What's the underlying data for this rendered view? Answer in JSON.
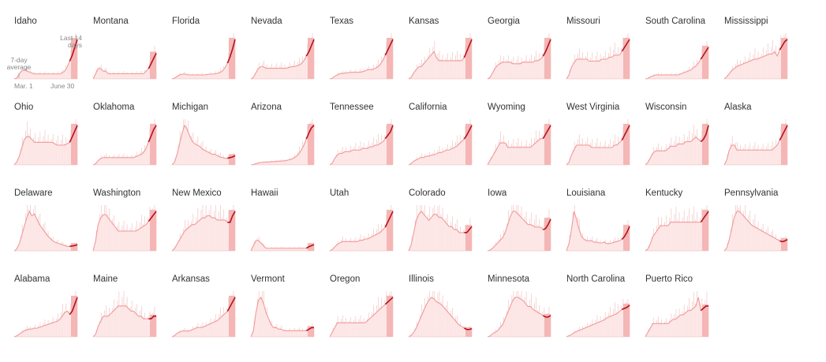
{
  "colors": {
    "daily_bars": "#f4cccc",
    "area_fill": "#fde5e5",
    "average_line": "#f19a9a",
    "recent_line": "#b4121c",
    "highlight_band": "#f5b6b6",
    "annotation_text": "#888888"
  },
  "annotations": {
    "seven_day_average": "7-day average",
    "recent_window": "Last 14 days",
    "start_date": "Mar. 1",
    "end_date": "June 30"
  },
  "chart_data": {
    "type": "area",
    "x_range": [
      "Mar. 1",
      "June 30"
    ],
    "y_scale": "per-chart relative (small multiples, no printed axis values)",
    "grid": false,
    "series": [
      {
        "name": "Idaho",
        "values": [
          0,
          0.5,
          2.5,
          4,
          4.5,
          4,
          3.5,
          3,
          2.5,
          2.5,
          2.5,
          2.5,
          2.5,
          2.5,
          2.5,
          2.5,
          2.5,
          2.5,
          2.5,
          3,
          4,
          6,
          9,
          12,
          16,
          20
        ]
      },
      {
        "name": "Montana",
        "values": [
          0,
          1,
          2,
          2,
          1.5,
          1.5,
          1,
          1,
          1,
          1,
          1,
          1,
          1,
          1,
          1,
          1,
          1,
          1,
          1,
          1,
          1,
          1.5,
          2,
          3,
          4,
          5
        ]
      },
      {
        "name": "Florida",
        "values": [
          0,
          1,
          3,
          5,
          6,
          6,
          5.5,
          5,
          5,
          5,
          5,
          5,
          5,
          5,
          5.5,
          6,
          6,
          6.5,
          7,
          8,
          10,
          14,
          20,
          28,
          38,
          50
        ]
      },
      {
        "name": "Nevada",
        "values": [
          0,
          1,
          4,
          7,
          8,
          8,
          7,
          7,
          7,
          7,
          7,
          7,
          7,
          7,
          7,
          7.5,
          8,
          8,
          8.5,
          9,
          10,
          12,
          15,
          18,
          22,
          26
        ]
      },
      {
        "name": "Texas",
        "values": [
          0,
          0.5,
          2,
          3,
          4,
          4,
          4.5,
          4.5,
          5,
          5,
          5,
          5,
          5,
          5.5,
          6,
          7,
          7,
          7,
          8,
          9,
          11,
          14,
          18,
          22,
          26,
          30
        ]
      },
      {
        "name": "Kansas",
        "values": [
          0,
          0.5,
          2,
          3,
          4,
          4,
          5,
          6,
          7,
          8,
          9,
          7,
          6,
          6,
          6,
          6,
          6,
          6,
          6,
          6,
          6,
          6,
          7,
          9,
          11,
          13
        ]
      },
      {
        "name": "Georgia",
        "values": [
          0,
          1,
          4,
          7,
          9,
          10,
          11,
          11,
          11,
          11,
          10,
          10,
          10,
          10,
          11,
          11,
          11,
          11,
          11,
          12,
          12,
          13,
          15,
          18,
          22,
          26
        ]
      },
      {
        "name": "Missouri",
        "values": [
          0,
          1,
          3,
          4,
          5,
          5,
          5,
          5,
          5,
          4.5,
          4.5,
          4.5,
          4.5,
          4.5,
          5,
          5,
          5,
          5.5,
          5.5,
          6,
          6,
          6,
          7,
          8,
          9,
          10
        ]
      },
      {
        "name": "South Carolina",
        "values": [
          0,
          0.5,
          2,
          3,
          4,
          4,
          4,
          4,
          4,
          4,
          4,
          4,
          4,
          4,
          5,
          6,
          7,
          8,
          9,
          11,
          13,
          16,
          20,
          24,
          28,
          32
        ]
      },
      {
        "name": "Mississippi",
        "values": [
          0,
          2,
          5,
          8,
          10,
          12,
          13,
          14,
          15,
          16,
          17,
          18,
          19,
          19,
          20,
          21,
          22,
          23,
          24,
          24,
          26,
          22,
          28,
          32,
          36,
          38
        ]
      },
      {
        "name": "Ohio",
        "values": [
          0,
          1,
          3,
          6,
          9,
          10,
          10,
          9,
          8,
          8,
          8,
          8,
          8,
          8,
          8,
          8,
          7.5,
          7,
          7,
          7,
          7,
          7.5,
          8,
          10,
          12,
          14
        ]
      },
      {
        "name": "Oklahoma",
        "values": [
          0,
          0.5,
          2,
          3,
          3.5,
          3.5,
          3.5,
          3.5,
          3.5,
          3.5,
          3.5,
          3.5,
          3.5,
          3.5,
          3.5,
          3.5,
          3.5,
          4,
          4.5,
          5,
          6,
          8,
          11,
          14,
          17,
          19
        ]
      },
      {
        "name": "Michigan",
        "values": [
          0,
          2,
          8,
          16,
          24,
          30,
          27,
          22,
          18,
          16,
          15,
          14,
          12,
          11,
          10,
          9,
          8,
          8,
          7,
          6,
          5.5,
          5,
          5,
          5.5,
          6,
          7
        ]
      },
      {
        "name": "Arizona",
        "values": [
          0,
          0.5,
          2,
          3,
          4,
          4,
          4.5,
          4.5,
          5,
          5,
          5.5,
          6,
          6,
          6.5,
          7,
          8,
          9,
          11,
          14,
          18,
          24,
          32,
          42,
          52,
          60,
          64
        ]
      },
      {
        "name": "Tennessee",
        "values": [
          0,
          1,
          4,
          6,
          7,
          7,
          8,
          8,
          8,
          9,
          9,
          9,
          9,
          10,
          10,
          10,
          11,
          11,
          12,
          12,
          13,
          14,
          16,
          18,
          20,
          24
        ]
      },
      {
        "name": "California",
        "values": [
          0,
          1,
          3,
          4,
          5,
          6,
          6,
          7,
          7,
          8,
          8,
          9,
          10,
          10,
          11,
          12,
          12,
          13,
          14,
          15,
          17,
          19,
          21,
          24,
          28,
          32
        ]
      },
      {
        "name": "Wyoming",
        "values": [
          0,
          1,
          2,
          3,
          4,
          5,
          5,
          5,
          4,
          4,
          4,
          4,
          4,
          4,
          4,
          4,
          4,
          4,
          4.5,
          5,
          5.5,
          6,
          6,
          7,
          8,
          9
        ]
      },
      {
        "name": "West Virginia",
        "values": [
          0,
          0.5,
          2,
          3,
          4,
          4,
          4,
          4,
          4,
          4,
          3.5,
          3.5,
          3.5,
          3.5,
          3.5,
          3.5,
          3.5,
          3.5,
          3.5,
          4,
          4,
          4.5,
          5,
          6,
          7,
          8
        ]
      },
      {
        "name": "Wisconsin",
        "values": [
          0,
          1,
          3,
          5,
          6,
          6,
          6,
          6,
          6,
          7,
          8,
          8,
          8,
          9,
          9,
          9,
          10,
          10,
          10,
          11,
          12,
          11,
          10,
          11,
          13,
          17
        ]
      },
      {
        "name": "Alaska",
        "values": [
          0,
          1,
          3,
          4,
          4,
          3,
          3,
          3,
          3,
          3,
          3,
          3,
          3,
          3,
          3,
          3,
          3,
          3,
          3,
          3,
          3.5,
          4,
          5,
          6,
          7,
          8
        ]
      },
      {
        "name": "Delaware",
        "values": [
          0,
          2,
          8,
          18,
          28,
          38,
          45,
          40,
          42,
          36,
          30,
          26,
          22,
          18,
          15,
          12,
          10,
          9,
          8,
          7,
          6,
          5,
          5,
          5.5,
          6,
          7
        ]
      },
      {
        "name": "Washington",
        "values": [
          0,
          3,
          8,
          10,
          11,
          11,
          10,
          9,
          8,
          7,
          6,
          6,
          6,
          6,
          6,
          6,
          6,
          6,
          6.5,
          7,
          7.5,
          8,
          9,
          10,
          11,
          12
        ]
      },
      {
        "name": "New Mexico",
        "values": [
          0,
          1,
          3,
          5,
          7,
          9,
          10,
          11,
          12,
          12,
          13,
          14,
          15,
          15,
          16,
          16,
          15,
          15,
          14,
          14,
          14,
          14,
          13,
          13,
          16,
          18
        ]
      },
      {
        "name": "Hawaii",
        "values": [
          0,
          1,
          2,
          2,
          1.5,
          1,
          0.5,
          0.5,
          0.5,
          0.5,
          0.5,
          0.5,
          0.5,
          0.5,
          0.5,
          0.5,
          0.5,
          0.5,
          0.5,
          0.5,
          0.5,
          0.5,
          0.5,
          0.8,
          1,
          1.2
        ]
      },
      {
        "name": "Utah",
        "values": [
          0,
          1,
          3,
          5,
          6,
          7,
          7,
          7,
          7,
          7,
          7,
          7,
          8,
          8,
          9,
          9,
          10,
          11,
          12,
          13,
          14,
          16,
          18,
          22,
          26,
          30
        ]
      },
      {
        "name": "Colorado",
        "values": [
          0,
          2,
          6,
          10,
          12,
          13,
          12,
          11,
          10,
          11,
          12,
          12,
          11,
          11,
          10,
          9,
          8,
          8,
          7,
          7,
          6,
          6,
          6,
          6,
          7,
          8
        ]
      },
      {
        "name": "Iowa",
        "values": [
          0,
          0.5,
          2,
          4,
          6,
          8,
          10,
          14,
          20,
          26,
          30,
          30,
          28,
          26,
          24,
          22,
          20,
          20,
          19,
          18,
          18,
          18,
          16,
          17,
          20,
          24
        ]
      },
      {
        "name": "Louisiana",
        "values": [
          0,
          10,
          30,
          55,
          44,
          30,
          20,
          16,
          14,
          14,
          14,
          12,
          12,
          11,
          11,
          12,
          10,
          10,
          11,
          12,
          13,
          14,
          16,
          20,
          26,
          34
        ]
      },
      {
        "name": "Kentucky",
        "values": [
          0,
          0.5,
          2,
          4,
          5,
          6,
          7,
          7,
          7,
          7,
          8,
          8,
          8,
          8,
          8,
          8,
          8,
          8,
          8,
          8,
          8,
          8,
          8,
          9,
          10,
          11
        ]
      },
      {
        "name": "Pennsylvania",
        "values": [
          0,
          2,
          8,
          16,
          24,
          28,
          28,
          26,
          24,
          22,
          20,
          18,
          17,
          16,
          15,
          14,
          13,
          12,
          11,
          10,
          9,
          8,
          7,
          6.5,
          7,
          8
        ]
      },
      {
        "name": "Alabama",
        "values": [
          0,
          1,
          3,
          5,
          7,
          8,
          9,
          9,
          10,
          10,
          11,
          12,
          13,
          14,
          15,
          16,
          17,
          18,
          20,
          24,
          28,
          30,
          26,
          30,
          38,
          46
        ]
      },
      {
        "name": "Maine",
        "values": [
          0,
          0.5,
          2,
          3,
          4,
          4,
          4,
          4.5,
          5,
          5.5,
          6,
          6,
          6,
          6,
          5.5,
          5,
          5,
          4.5,
          4,
          4,
          3.5,
          3.5,
          3.5,
          3.5,
          4,
          4
        ]
      },
      {
        "name": "Arkansas",
        "values": [
          0,
          1,
          3,
          4,
          5,
          5,
          5,
          5,
          6,
          7,
          8,
          8,
          8,
          9,
          10,
          11,
          12,
          13,
          14,
          16,
          18,
          20,
          22,
          26,
          30,
          34
        ]
      },
      {
        "name": "Vermont",
        "values": [
          0,
          2,
          8,
          12,
          13,
          11,
          8,
          6,
          4,
          3,
          3,
          2.5,
          2.5,
          2,
          2,
          2,
          2,
          2,
          2,
          2,
          2,
          2,
          2,
          2.5,
          3,
          3
        ]
      },
      {
        "name": "Oregon",
        "values": [
          0,
          1,
          2,
          3,
          3,
          3,
          3,
          3,
          3,
          3,
          3,
          3,
          3,
          3,
          3,
          3.5,
          4,
          4.5,
          5,
          5.5,
          6,
          6.5,
          7,
          7.5,
          8,
          8.5
        ]
      },
      {
        "name": "Illinois",
        "values": [
          0,
          2,
          6,
          12,
          20,
          28,
          36,
          44,
          50,
          54,
          52,
          48,
          46,
          44,
          40,
          36,
          32,
          28,
          24,
          20,
          16,
          14,
          12,
          10,
          10,
          11
        ]
      },
      {
        "name": "Minnesota",
        "values": [
          0,
          0.5,
          2,
          3,
          4,
          6,
          8,
          12,
          16,
          20,
          24,
          26,
          26,
          25,
          24,
          22,
          20,
          20,
          18,
          17,
          16,
          15,
          14,
          13,
          13,
          14
        ]
      },
      {
        "name": "North Carolina",
        "values": [
          0,
          1,
          2,
          4,
          5,
          6,
          7,
          8,
          9,
          10,
          11,
          12,
          13,
          14,
          15,
          16,
          18,
          19,
          20,
          21,
          22,
          24,
          26,
          27,
          28,
          30
        ]
      },
      {
        "name": "Puerto Rico",
        "values": [
          0,
          1,
          2,
          3,
          3,
          3,
          3,
          3,
          3,
          3,
          3.5,
          4,
          4,
          4.5,
          5,
          5,
          5.5,
          6,
          6,
          6.5,
          7,
          9,
          6,
          6.5,
          7,
          7
        ]
      }
    ]
  }
}
